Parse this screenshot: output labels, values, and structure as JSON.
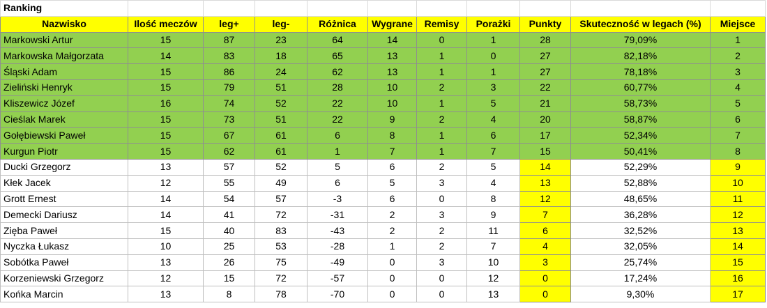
{
  "title": "Ranking",
  "headers": [
    "Nazwisko",
    "Ilość meczów",
    "leg+",
    "leg-",
    "Różnica",
    "Wygrane",
    "Remisy",
    "Porażki",
    "Punkty",
    "Skuteczność w legach (%)",
    "Miejsce"
  ],
  "rows": [
    [
      "Markowski Artur",
      "15",
      "87",
      "23",
      "64",
      "14",
      "0",
      "1",
      "28",
      "79,09%",
      "1"
    ],
    [
      "Markowska Małgorzata",
      "14",
      "83",
      "18",
      "65",
      "13",
      "1",
      "0",
      "27",
      "82,18%",
      "2"
    ],
    [
      "Śląski Adam",
      "15",
      "86",
      "24",
      "62",
      "13",
      "1",
      "1",
      "27",
      "78,18%",
      "3"
    ],
    [
      "Zieliński Henryk",
      "15",
      "79",
      "51",
      "28",
      "10",
      "2",
      "3",
      "22",
      "60,77%",
      "4"
    ],
    [
      "Kliszewicz Józef",
      "16",
      "74",
      "52",
      "22",
      "10",
      "1",
      "5",
      "21",
      "58,73%",
      "5"
    ],
    [
      "Cieślak Marek",
      "15",
      "73",
      "51",
      "22",
      "9",
      "2",
      "4",
      "20",
      "58,87%",
      "6"
    ],
    [
      "Gołębiewski Paweł",
      "15",
      "67",
      "61",
      "6",
      "8",
      "1",
      "6",
      "17",
      "52,34%",
      "7"
    ],
    [
      "Kurgun Piotr",
      "15",
      "62",
      "61",
      "1",
      "7",
      "1",
      "7",
      "15",
      "50,41%",
      "8"
    ],
    [
      "Ducki Grzegorz",
      "13",
      "57",
      "52",
      "5",
      "6",
      "2",
      "5",
      "14",
      "52,29%",
      "9"
    ],
    [
      "Kłek Jacek",
      "12",
      "55",
      "49",
      "6",
      "5",
      "3",
      "4",
      "13",
      "52,88%",
      "10"
    ],
    [
      "Grott Ernest",
      "14",
      "54",
      "57",
      "-3",
      "6",
      "0",
      "8",
      "12",
      "48,65%",
      "11"
    ],
    [
      "Demecki Dariusz",
      "14",
      "41",
      "72",
      "-31",
      "2",
      "3",
      "9",
      "7",
      "36,28%",
      "12"
    ],
    [
      "Zięba Paweł",
      "15",
      "40",
      "83",
      "-43",
      "2",
      "2",
      "11",
      "6",
      "32,52%",
      "13"
    ],
    [
      "Nyczka Łukasz",
      "10",
      "25",
      "53",
      "-28",
      "1",
      "2",
      "7",
      "4",
      "32,05%",
      "14"
    ],
    [
      "Sobótka Paweł",
      "13",
      "26",
      "75",
      "-49",
      "0",
      "3",
      "10",
      "3",
      "25,74%",
      "15"
    ],
    [
      "Korzeniewski Grzegorz",
      "12",
      "15",
      "72",
      "-57",
      "0",
      "0",
      "12",
      "0",
      "17,24%",
      "16"
    ],
    [
      "Końka Marcin",
      "13",
      "8",
      "78",
      "-70",
      "0",
      "0",
      "13",
      "0",
      "9,30%",
      "17"
    ]
  ],
  "top_group_count": 8,
  "highlighted_columns": [
    8,
    10
  ],
  "colors": {
    "header_background": "#ffff00",
    "top_group_background": "#92d050",
    "highlight_background": "#ffff00",
    "gridline": "#bfbfbf"
  }
}
